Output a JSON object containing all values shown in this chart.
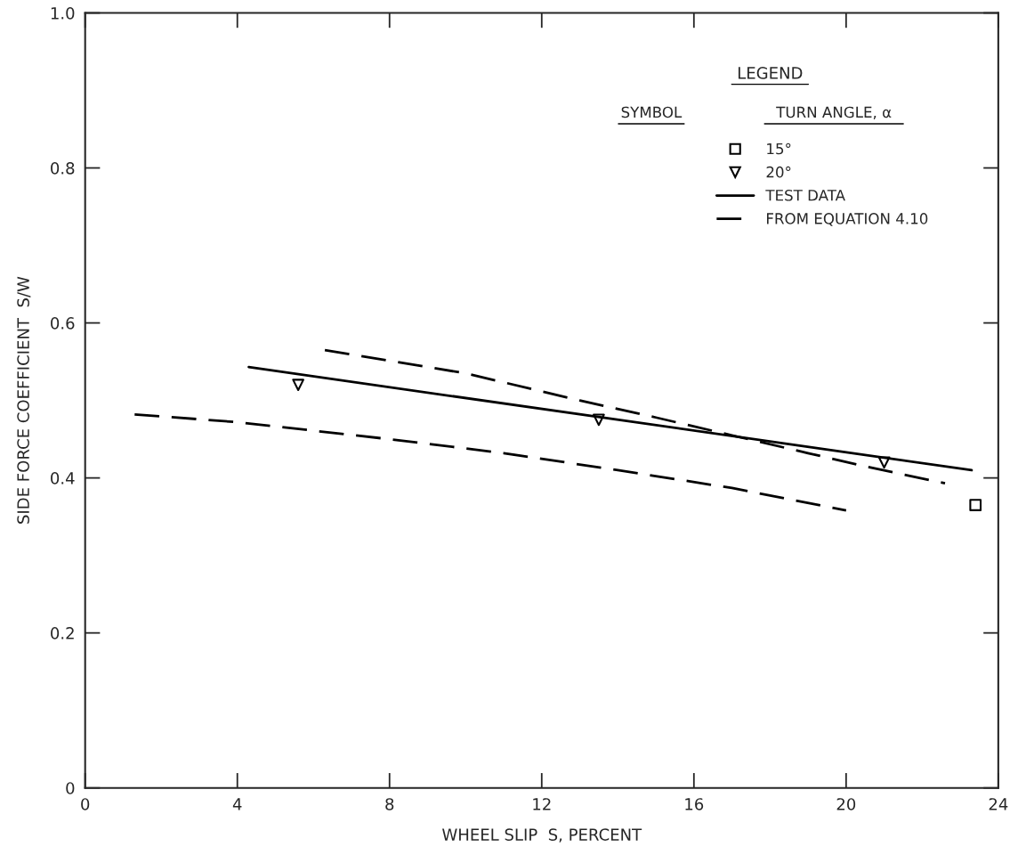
{
  "chart_data": {
    "type": "line",
    "xlabel": "WHEEL SLIP  S, PERCENT",
    "ylabel": "SIDE FORCE COEFFICIENT  S/W",
    "legend_title": "LEGEND",
    "annotations": [
      "SYMBOL",
      "TURN ANGLE, α"
    ],
    "xlim": [
      0,
      24
    ],
    "xticks": [
      0,
      4,
      8,
      12,
      16,
      20,
      24
    ],
    "ylim": [
      0,
      1
    ],
    "yticks": [
      0,
      {
        "value": 0.2,
        "label": "0.2"
      },
      {
        "value": 0.4,
        "label": "0.4"
      },
      {
        "value": 0.6,
        "label": "0.6"
      },
      {
        "value": 0.8,
        "label": "0.8"
      },
      {
        "value": 1,
        "label": "1.0"
      }
    ],
    "grid": false,
    "legend": "top right",
    "series": [
      {
        "name": "15°",
        "type": "scatter",
        "marker": "square",
        "color": "#000000",
        "x": [
          23.4
        ],
        "values": [
          0.365
        ]
      },
      {
        "name": "20°",
        "type": "scatter",
        "marker": "triangle",
        "color": "#000000",
        "x": [
          5.6,
          13.5,
          21.0
        ],
        "values": [
          0.52,
          0.475,
          0.42
        ]
      },
      {
        "name": "TEST DATA",
        "line_style": "solid",
        "color": "#000000",
        "x": [
          4.3,
          23.3
        ],
        "values": [
          0.543,
          0.41
        ]
      },
      {
        "name": "FROM EQUATION 4.10",
        "line_style": "dashed",
        "color": "#000000",
        "x": [
          6.3,
          10,
          13,
          15,
          17,
          19,
          20.5,
          22.6
        ],
        "values": [
          0.565,
          0.535,
          0.5,
          0.478,
          0.455,
          0.432,
          0.415,
          0.393
        ]
      },
      {
        "line_style": "dashed",
        "color": "#000000",
        "x": [
          1.3,
          4,
          8,
          11,
          14,
          17,
          20
        ],
        "values": [
          0.482,
          0.472,
          0.45,
          0.432,
          0.41,
          0.387,
          0.358
        ]
      }
    ]
  }
}
